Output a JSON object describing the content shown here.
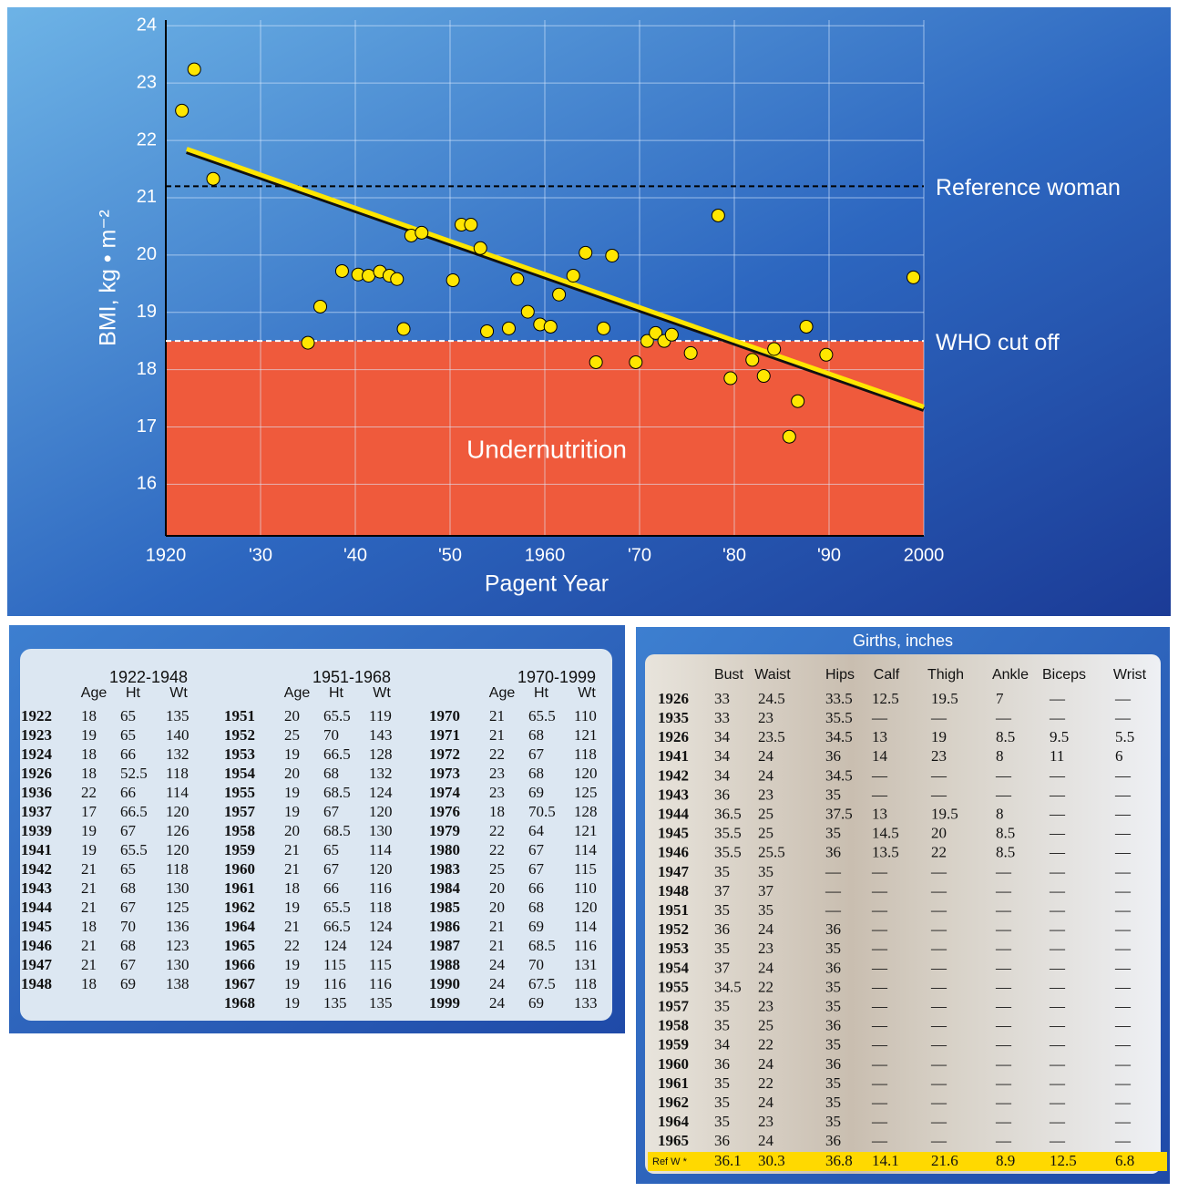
{
  "chart_data": {
    "type": "scatter",
    "x_label": "Pagent Year",
    "y_label": "BMI,  kg • m⁻²",
    "xlim": [
      1920,
      2000
    ],
    "ylim": [
      15.1,
      24.1
    ],
    "xticks": [
      1920,
      {
        "value": 1930,
        "label": "'30"
      },
      {
        "value": 1940,
        "label": "'40"
      },
      {
        "value": 1950,
        "label": "'50"
      },
      1960,
      {
        "value": 1970,
        "label": "'70"
      },
      {
        "value": 1980,
        "label": "'80"
      },
      {
        "value": 1990,
        "label": "'90"
      },
      2000
    ],
    "xticks_label_fix": null,
    "yticks": [
      16,
      17,
      18,
      19,
      20,
      21,
      22,
      23,
      24
    ],
    "grid": true,
    "color": "#ffe600",
    "x": [
      1921.7,
      1923.0,
      1925.0,
      1935.0,
      1936.3,
      1938.6,
      1940.3,
      1941.4,
      1942.6,
      1943.6,
      1944.4,
      1945.1,
      1945.9,
      1947.0,
      1950.3,
      1951.2,
      1952.2,
      1953.2,
      1953.9,
      1956.2,
      1957.1,
      1958.2,
      1959.5,
      1960.6,
      1961.5,
      1963.0,
      1964.3,
      1965.4,
      1966.2,
      1967.1,
      1969.6,
      1970.8,
      1971.7,
      1972.6,
      1973.4,
      1975.4,
      1978.3,
      1979.6,
      1981.9,
      1983.1,
      1984.2,
      1985.8,
      1986.7,
      1987.6,
      1989.7,
      1998.9
    ],
    "values": [
      22.52,
      23.24,
      21.33,
      18.47,
      19.1,
      19.72,
      19.66,
      19.64,
      19.71,
      19.64,
      19.58,
      18.71,
      20.34,
      20.39,
      19.56,
      20.53,
      20.53,
      20.12,
      18.67,
      18.72,
      19.58,
      19.01,
      18.79,
      18.75,
      19.31,
      19.64,
      20.04,
      18.13,
      18.72,
      19.99,
      18.13,
      18.5,
      18.64,
      18.5,
      18.61,
      18.29,
      20.69,
      17.85,
      18.17,
      17.89,
      18.36,
      16.83,
      17.45,
      18.75,
      18.26,
      19.61
    ],
    "trend": {
      "x": [
        1922.2,
        2000
      ],
      "values": [
        21.85,
        17.35
      ],
      "color": "#ffe600"
    },
    "reference_lines": [
      {
        "value": 21.2,
        "label": "Reference woman",
        "color": "#000000"
      },
      {
        "value": 18.5,
        "label": "WHO cut off",
        "color": "#ffffff"
      }
    ],
    "undernutrition": {
      "label": "Undernutrition",
      "ymax": 18.5,
      "color": "#ef5a3c"
    }
  },
  "tables": {
    "pageants": {
      "groups": [
        {
          "title": "1922-1948",
          "columns": [
            "Age",
            "Ht",
            "Wt"
          ],
          "rows": [
            [
              "1922",
              "18",
              "65",
              "135"
            ],
            [
              "1923",
              "19",
              "65",
              "140"
            ],
            [
              "1924",
              "18",
              "66",
              "132"
            ],
            [
              "1926",
              "18",
              "52.5",
              "118"
            ],
            [
              "1936",
              "22",
              "66",
              "114"
            ],
            [
              "1937",
              "17",
              "66.5",
              "120"
            ],
            [
              "1939",
              "19",
              "67",
              "126"
            ],
            [
              "1941",
              "19",
              "65.5",
              "120"
            ],
            [
              "1942",
              "21",
              "65",
              "118"
            ],
            [
              "1943",
              "21",
              "68",
              "130"
            ],
            [
              "1944",
              "21",
              "67",
              "125"
            ],
            [
              "1945",
              "18",
              "70",
              "136"
            ],
            [
              "1946",
              "21",
              "68",
              "123"
            ],
            [
              "1947",
              "21",
              "67",
              "130"
            ],
            [
              "1948",
              "18",
              "69",
              "138"
            ]
          ]
        },
        {
          "title": "1951-1968",
          "columns": [
            "Age",
            "Ht",
            "Wt"
          ],
          "rows": [
            [
              "1951",
              "20",
              "65.5",
              "119"
            ],
            [
              "1952",
              "25",
              "70",
              "143"
            ],
            [
              "1953",
              "19",
              "66.5",
              "128"
            ],
            [
              "1954",
              "20",
              "68",
              "132"
            ],
            [
              "1955",
              "19",
              "68.5",
              "124"
            ],
            [
              "1957",
              "19",
              "67",
              "120"
            ],
            [
              "1958",
              "20",
              "68.5",
              "130"
            ],
            [
              "1959",
              "21",
              "65",
              "114"
            ],
            [
              "1960",
              "21",
              "67",
              "120"
            ],
            [
              "1961",
              "18",
              "66",
              "116"
            ],
            [
              "1962",
              "19",
              "65.5",
              "118"
            ],
            [
              "1964",
              "21",
              "66.5",
              "124"
            ],
            [
              "1965",
              "22",
              "124",
              "124"
            ],
            [
              "1966",
              "19",
              "115",
              "115"
            ],
            [
              "1967",
              "19",
              "116",
              "116"
            ],
            [
              "1968",
              "19",
              "135",
              "135"
            ]
          ]
        },
        {
          "title": "1970-1999",
          "columns": [
            "Age",
            "Ht",
            "Wt"
          ],
          "rows": [
            [
              "1970",
              "21",
              "65.5",
              "110"
            ],
            [
              "1971",
              "21",
              "68",
              "121"
            ],
            [
              "1972",
              "22",
              "67",
              "118"
            ],
            [
              "1973",
              "23",
              "68",
              "120"
            ],
            [
              "1974",
              "23",
              "69",
              "125"
            ],
            [
              "1976",
              "18",
              "70.5",
              "128"
            ],
            [
              "1979",
              "22",
              "64",
              "121"
            ],
            [
              "1980",
              "22",
              "67",
              "114"
            ],
            [
              "1983",
              "25",
              "67",
              "115"
            ],
            [
              "1984",
              "20",
              "66",
              "110"
            ],
            [
              "1985",
              "20",
              "68",
              "120"
            ],
            [
              "1986",
              "21",
              "69",
              "114"
            ],
            [
              "1987",
              "21",
              "68.5",
              "116"
            ],
            [
              "1988",
              "24",
              "70",
              "131"
            ],
            [
              "1990",
              "24",
              "67.5",
              "118"
            ],
            [
              "1999",
              "24",
              "69",
              "133"
            ]
          ]
        }
      ]
    },
    "girths": {
      "title": "Girths, inches",
      "columns": [
        "Bust",
        "Waist",
        "Hips",
        "Calf",
        "Thigh",
        "Ankle",
        "Biceps",
        "Wrist"
      ],
      "rows": [
        [
          "1926",
          "33",
          "24.5",
          "33.5",
          "12.5",
          "19.5",
          "7",
          "—",
          "—"
        ],
        [
          "1935",
          "33",
          "23",
          "35.5",
          "—",
          "—",
          "—",
          "—",
          "—"
        ],
        [
          "1926",
          "34",
          "23.5",
          "34.5",
          "13",
          "19",
          "8.5",
          "9.5",
          "5.5"
        ],
        [
          "1941",
          "34",
          "24",
          "36",
          "14",
          "23",
          "8",
          "11",
          "6"
        ],
        [
          "1942",
          "34",
          "24",
          "34.5",
          "—",
          "—",
          "—",
          "—",
          "—"
        ],
        [
          "1943",
          "36",
          "23",
          "35",
          "—",
          "—",
          "—",
          "—",
          "—"
        ],
        [
          "1944",
          "36.5",
          "25",
          "37.5",
          "13",
          "19.5",
          "8",
          "—",
          "—"
        ],
        [
          "1945",
          "35.5",
          "25",
          "35",
          "14.5",
          "20",
          "8.5",
          "—",
          "—"
        ],
        [
          "1946",
          "35.5",
          "25.5",
          "36",
          "13.5",
          "22",
          "8.5",
          "—",
          "—"
        ],
        [
          "1947",
          "35",
          "35",
          "—",
          "—",
          "—",
          "—",
          "—",
          "—"
        ],
        [
          "1948",
          "37",
          "37",
          "—",
          "—",
          "—",
          "—",
          "—",
          "—"
        ],
        [
          "1951",
          "35",
          "35",
          "—",
          "—",
          "—",
          "—",
          "—",
          "—"
        ],
        [
          "1952",
          "36",
          "24",
          "36",
          "—",
          "—",
          "—",
          "—",
          "—"
        ],
        [
          "1953",
          "35",
          "23",
          "35",
          "—",
          "—",
          "—",
          "—",
          "—"
        ],
        [
          "1954",
          "37",
          "24",
          "36",
          "—",
          "—",
          "—",
          "—",
          "—"
        ],
        [
          "1955",
          "34.5",
          "22",
          "35",
          "—",
          "—",
          "—",
          "—",
          "—"
        ],
        [
          "1957",
          "35",
          "23",
          "35",
          "—",
          "—",
          "—",
          "—",
          "—"
        ],
        [
          "1958",
          "35",
          "25",
          "36",
          "—",
          "—",
          "—",
          "—",
          "—"
        ],
        [
          "1959",
          "34",
          "22",
          "35",
          "—",
          "—",
          "—",
          "—",
          "—"
        ],
        [
          "1960",
          "36",
          "24",
          "36",
          "—",
          "—",
          "—",
          "—",
          "—"
        ],
        [
          "1961",
          "35",
          "22",
          "35",
          "—",
          "—",
          "—",
          "—",
          "—"
        ],
        [
          "1962",
          "35",
          "24",
          "35",
          "—",
          "—",
          "—",
          "—",
          "—"
        ],
        [
          "1964",
          "35",
          "23",
          "35",
          "—",
          "—",
          "—",
          "—",
          "—"
        ],
        [
          "1965",
          "36",
          "24",
          "36",
          "—",
          "—",
          "—",
          "—",
          "—"
        ]
      ],
      "reference": [
        "Ref W *",
        "36.1",
        "30.3",
        "36.8",
        "14.1",
        "21.6",
        "8.9",
        "12.5",
        "6.8"
      ]
    }
  }
}
